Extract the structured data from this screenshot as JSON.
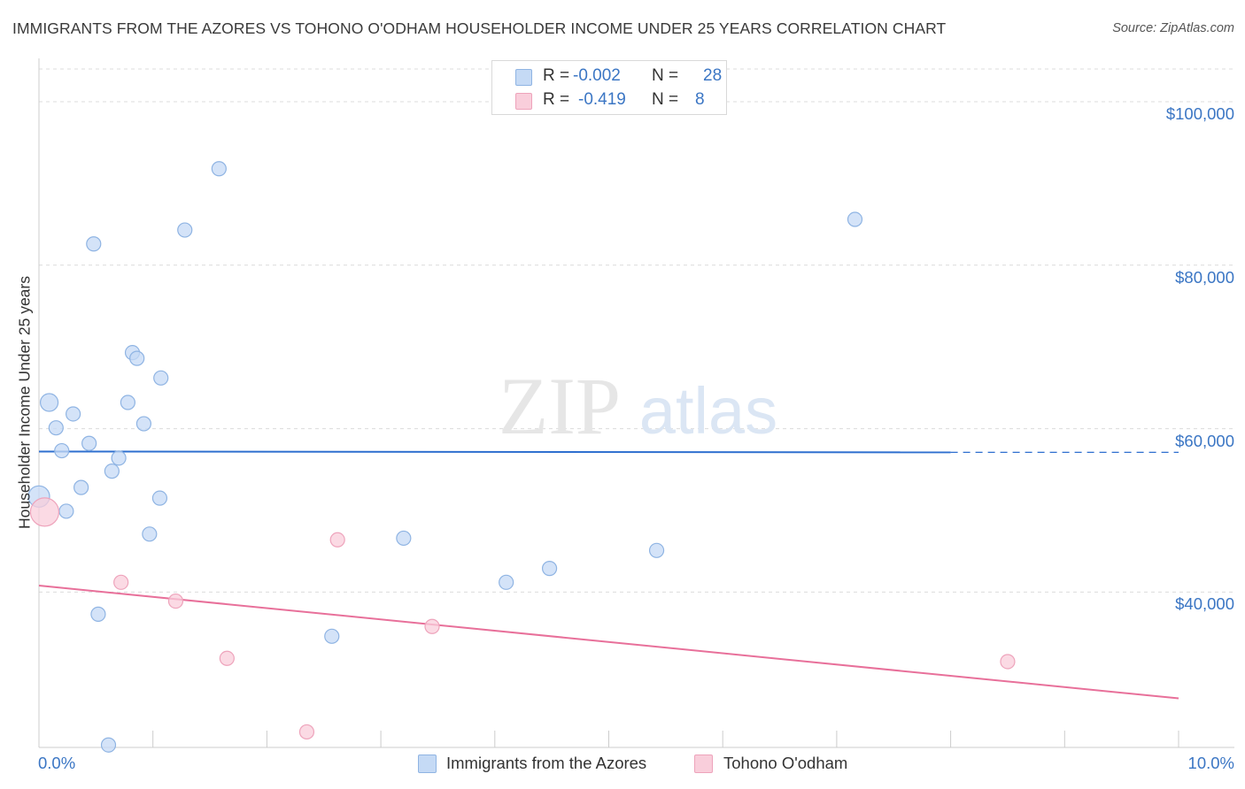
{
  "header": {
    "title": "IMMIGRANTS FROM THE AZORES VS TOHONO O'ODHAM HOUSEHOLDER INCOME UNDER 25 YEARS CORRELATION CHART",
    "source": "Source: ZipAtlas.com"
  },
  "watermark": {
    "zip": "ZIP",
    "atlas": "atlas"
  },
  "legend": {
    "rows": [
      {
        "r_label": "R =",
        "r_value": "-0.002",
        "n_label": "N =",
        "n_value": "28"
      },
      {
        "r_label": "R =",
        "r_value": "-0.419",
        "n_label": "N =",
        "n_value": "8"
      }
    ]
  },
  "bottom_legend": {
    "series1": "Immigrants from the Azores",
    "series2": "Tohono O'odham"
  },
  "colors": {
    "blue_fill": "#c5daf5",
    "blue_stroke": "#8fb4e3",
    "blue_line": "#2e6fcf",
    "pink_fill": "#f9cedb",
    "pink_stroke": "#eea3bb",
    "pink_line": "#e8709a",
    "label_blue": "#3b76c4",
    "grid": "#dcdcdc"
  },
  "chart_data": {
    "type": "scatter",
    "title": "IMMIGRANTS FROM THE AZORES VS TOHONO O'ODHAM HOUSEHOLDER INCOME UNDER 25 YEARS CORRELATION CHART",
    "xlabel": "",
    "ylabel": "Householder Income Under 25 years",
    "xlim": [
      0,
      10
    ],
    "ylim": [
      21000,
      104000
    ],
    "x_tick_labels": [
      "0.0%",
      "10.0%"
    ],
    "y_ticks": [
      40000,
      60000,
      80000,
      100000
    ],
    "y_tick_labels": [
      "$40,000",
      "$60,000",
      "$80,000",
      "$100,000"
    ],
    "series": [
      {
        "name": "Immigrants from the Azores",
        "points": [
          {
            "x": 0.0,
            "y": 51700,
            "s": 12
          },
          {
            "x": 0.09,
            "y": 63200,
            "s": 10
          },
          {
            "x": 0.15,
            "y": 60100,
            "s": 8
          },
          {
            "x": 0.2,
            "y": 57300,
            "s": 8
          },
          {
            "x": 0.24,
            "y": 49900,
            "s": 8
          },
          {
            "x": 0.3,
            "y": 61800,
            "s": 8
          },
          {
            "x": 0.37,
            "y": 52800,
            "s": 8
          },
          {
            "x": 0.44,
            "y": 58200,
            "s": 8
          },
          {
            "x": 0.48,
            "y": 82600,
            "s": 8
          },
          {
            "x": 0.52,
            "y": 37300,
            "s": 8
          },
          {
            "x": 0.61,
            "y": 21300,
            "s": 8
          },
          {
            "x": 0.64,
            "y": 54800,
            "s": 8
          },
          {
            "x": 0.7,
            "y": 56400,
            "s": 8
          },
          {
            "x": 0.78,
            "y": 63200,
            "s": 8
          },
          {
            "x": 0.82,
            "y": 69300,
            "s": 8
          },
          {
            "x": 0.86,
            "y": 68600,
            "s": 8
          },
          {
            "x": 0.92,
            "y": 60600,
            "s": 8
          },
          {
            "x": 0.97,
            "y": 47100,
            "s": 8
          },
          {
            "x": 1.06,
            "y": 51500,
            "s": 8
          },
          {
            "x": 1.07,
            "y": 66200,
            "s": 8
          },
          {
            "x": 1.28,
            "y": 84300,
            "s": 8
          },
          {
            "x": 1.58,
            "y": 91800,
            "s": 8
          },
          {
            "x": 2.57,
            "y": 34600,
            "s": 8
          },
          {
            "x": 3.2,
            "y": 46600,
            "s": 8
          },
          {
            "x": 4.1,
            "y": 41200,
            "s": 8
          },
          {
            "x": 4.48,
            "y": 42900,
            "s": 8
          },
          {
            "x": 5.42,
            "y": 45100,
            "s": 8
          },
          {
            "x": 7.16,
            "y": 85600,
            "s": 8
          }
        ],
        "trend": {
          "x0": 0,
          "y0": 57200,
          "x1": 8.0,
          "y1": 57100,
          "dashed_to_x": 10.0,
          "dashed_y": 57100
        }
      },
      {
        "name": "Tohono O'odham",
        "points": [
          {
            "x": 0.05,
            "y": 49800,
            "s": 16
          },
          {
            "x": 0.72,
            "y": 41200,
            "s": 8
          },
          {
            "x": 1.2,
            "y": 38900,
            "s": 8
          },
          {
            "x": 1.65,
            "y": 31900,
            "s": 8
          },
          {
            "x": 2.35,
            "y": 22900,
            "s": 8
          },
          {
            "x": 2.62,
            "y": 46400,
            "s": 8
          },
          {
            "x": 3.45,
            "y": 35800,
            "s": 8
          },
          {
            "x": 8.5,
            "y": 31500,
            "s": 8
          }
        ],
        "trend": {
          "x0": 0,
          "y0": 40800,
          "x1": 10.0,
          "y1": 27000
        }
      }
    ]
  }
}
